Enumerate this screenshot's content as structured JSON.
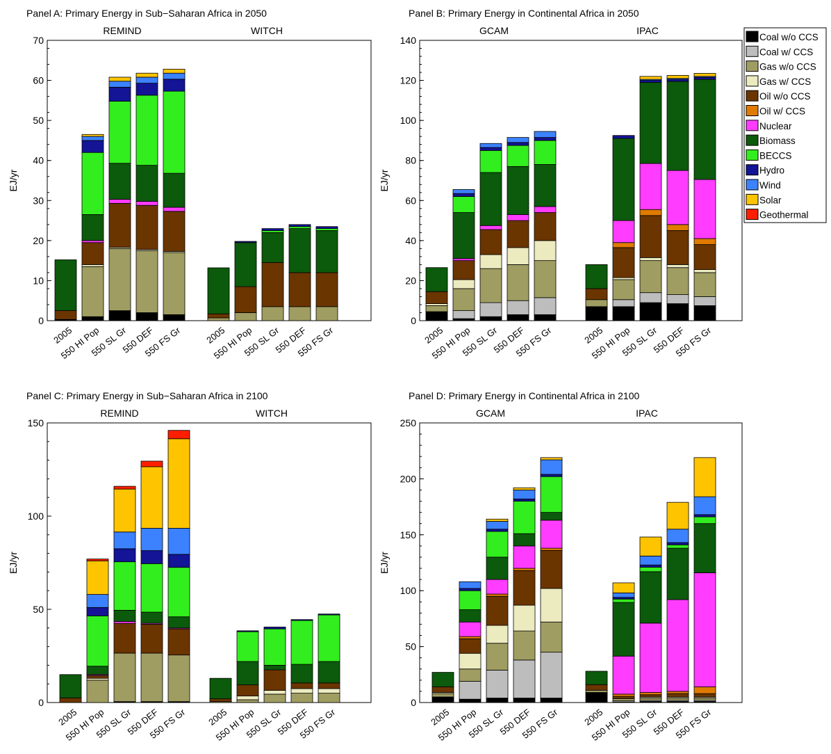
{
  "legend": {
    "items": [
      {
        "label": "Coal w/o CCS",
        "color": "#000000"
      },
      {
        "label": "Coal w/ CCS",
        "color": "#bdbdbd"
      },
      {
        "label": "Gas w/o CCS",
        "color": "#a09d62"
      },
      {
        "label": "Gas w/ CCS",
        "color": "#ecebc0"
      },
      {
        "label": "Oil w/o CCS",
        "color": "#6b3500"
      },
      {
        "label": "Oil w/ CCS",
        "color": "#e07b00"
      },
      {
        "label": "Nuclear",
        "color": "#ff3cff"
      },
      {
        "label": "Biomass",
        "color": "#0c5a0c"
      },
      {
        "label": "BECCS",
        "color": "#33ee1e"
      },
      {
        "label": "Hydro",
        "color": "#141496"
      },
      {
        "label": "Wind",
        "color": "#3c82ff"
      },
      {
        "label": "Solar",
        "color": "#ffc400"
      },
      {
        "label": "Geothermal",
        "color": "#ff1e00"
      }
    ]
  },
  "chart_data": [
    {
      "type": "bar",
      "stacked": true,
      "title": "Panel A: Primary Energy in Sub−Saharan Africa in 2050",
      "ylabel": "EJ/yr",
      "ylim": [
        0,
        70
      ],
      "yticks": [
        0,
        10,
        20,
        30,
        40,
        50,
        60,
        70
      ],
      "groups": [
        {
          "name": "REMIND",
          "categories": [
            "2005",
            "550 HI Pop",
            "550 SL Gr",
            "550 DEF",
            "550 FS Gr"
          ],
          "stacks": [
            [
              0.3,
              0,
              0,
              0,
              2.2,
              0,
              0,
              12.7,
              0,
              0,
              0,
              0,
              0
            ],
            [
              1,
              0,
              12.5,
              0.5,
              5.5,
              0,
              0.5,
              6.5,
              15.5,
              3,
              1,
              0.5,
              0
            ],
            [
              2.5,
              0,
              15.5,
              0.3,
              11,
              0,
              1,
              9,
              15.5,
              3.5,
              1.5,
              1,
              0
            ],
            [
              2,
              0,
              15.5,
              0.3,
              11,
              0,
              1,
              9,
              17.5,
              3,
              1.5,
              1,
              0
            ],
            [
              1.5,
              0,
              15.5,
              0.3,
              10,
              0,
              1,
              8.5,
              20.5,
              3,
              1.5,
              1,
              0
            ]
          ]
        },
        {
          "name": "WITCH",
          "categories": [
            "2005",
            "550 HI Pop",
            "550 SL Gr",
            "550 DEF",
            "550 FS Gr"
          ],
          "stacks": [
            [
              0,
              0,
              0.7,
              0,
              1,
              0,
              0,
              11.5,
              0,
              0,
              0,
              0,
              0
            ],
            [
              0,
              0,
              2,
              0,
              6.5,
              0,
              0,
              11,
              0,
              0.3,
              0,
              0,
              0
            ],
            [
              0,
              0,
              3.5,
              0,
              11,
              0,
              0,
              7.5,
              0.5,
              0.5,
              0,
              0,
              0
            ],
            [
              0,
              0,
              3.5,
              0,
              8.5,
              0,
              0,
              11,
              0.5,
              0.5,
              0,
              0,
              0
            ],
            [
              0,
              0,
              3.5,
              0,
              8.5,
              0,
              0,
              10.5,
              0.5,
              0.5,
              0,
              0,
              0
            ]
          ]
        }
      ]
    },
    {
      "type": "bar",
      "stacked": true,
      "title": "Panel B: Primary Energy in Continental Africa in 2050",
      "ylabel": "EJ/yr",
      "ylim": [
        0,
        140
      ],
      "yticks": [
        0,
        20,
        40,
        60,
        80,
        100,
        120,
        140
      ],
      "groups": [
        {
          "name": "GCAM",
          "categories": [
            "2005",
            "550 HI Pop",
            "550 SL Gr",
            "550 DEF",
            "550 FS Gr"
          ],
          "stacks": [
            [
              4.5,
              0,
              3,
              1,
              6,
              0,
              0,
              12,
              0,
              0,
              0,
              0,
              0
            ],
            [
              1,
              4,
              11,
              4.5,
              9.5,
              0,
              1,
              23,
              8,
              1.5,
              2,
              0,
              0
            ],
            [
              2,
              7,
              17,
              7,
              12.5,
              0,
              2,
              26.5,
              11,
              1.5,
              2,
              0,
              0
            ],
            [
              3,
              7,
              18,
              8.5,
              13.5,
              0,
              3,
              24,
              10.5,
              1.5,
              2.5,
              0,
              0
            ],
            [
              3,
              8.5,
              18.5,
              10,
              14,
              0,
              3,
              21,
              12,
              1.5,
              3,
              0,
              0
            ]
          ]
        },
        {
          "name": "IPAC",
          "categories": [
            "2005",
            "550 HI Pop",
            "550 SL Gr",
            "550 DEF",
            "550 FS Gr"
          ],
          "stacks": [
            [
              7,
              0,
              3.5,
              0,
              5.5,
              0,
              0,
              12,
              0,
              0,
              0,
              0,
              0
            ],
            [
              7,
              3.5,
              10,
              1,
              15,
              2.5,
              11,
              41,
              0,
              1.5,
              0,
              0,
              0
            ],
            [
              9,
              5,
              16,
              1.5,
              21,
              3,
              23,
              40.5,
              0,
              1,
              0.5,
              1.5,
              0
            ],
            [
              8.5,
              4.5,
              13.5,
              1.5,
              17,
              3,
              27,
              44.5,
              0,
              1,
              0.5,
              1.5,
              0
            ],
            [
              7.5,
              4.5,
              12,
              1.5,
              12.5,
              3,
              29.5,
              50,
              0,
              1,
              0.5,
              1.5,
              0
            ]
          ]
        }
      ]
    },
    {
      "type": "bar",
      "stacked": true,
      "title": "Panel C: Primary Energy in Sub−Saharan Africa in 2100",
      "ylabel": "EJ/yr",
      "ylim": [
        0,
        150
      ],
      "yticks": [
        0,
        50,
        100,
        150
      ],
      "groups": [
        {
          "name": "REMIND",
          "categories": [
            "2005",
            "550 HI Pop",
            "550 SL Gr",
            "550 DEF",
            "550 FS Gr"
          ],
          "stacks": [
            [
              0,
              0,
              0,
              0,
              2.5,
              0,
              0,
              12.5,
              0,
              0,
              0,
              0,
              0
            ],
            [
              0,
              0,
              12,
              1,
              1.5,
              0,
              0.5,
              4.5,
              27,
              4.5,
              7,
              18,
              1
            ],
            [
              0.5,
              0,
              26,
              0,
              16,
              0,
              1,
              6,
              26,
              7,
              9,
              23,
              1.5
            ],
            [
              0.5,
              0,
              26,
              0,
              15.5,
              0,
              0.5,
              6,
              26,
              7,
              12,
              33,
              3
            ],
            [
              0.5,
              0,
              25,
              0,
              14,
              0,
              0.5,
              6,
              26.5,
              7,
              14,
              48,
              4.5
            ]
          ]
        },
        {
          "name": "WITCH",
          "categories": [
            "2005",
            "550 HI Pop",
            "550 SL Gr",
            "550 DEF",
            "550 FS Gr"
          ],
          "stacks": [
            [
              0,
              0,
              0.5,
              0,
              1.5,
              0,
              0,
              11,
              0,
              0,
              0,
              0,
              0
            ],
            [
              0,
              0,
              1.5,
              2,
              6,
              0,
              0,
              12.5,
              16,
              0.5,
              0,
              0,
              0
            ],
            [
              0,
              0,
              4.5,
              2,
              11,
              0,
              0,
              2.5,
              19.5,
              1,
              0,
              0,
              0
            ],
            [
              0,
              0,
              5,
              2.5,
              3,
              0,
              0,
              10,
              23.5,
              0.5,
              0,
              0,
              0
            ],
            [
              0,
              0,
              5,
              2.5,
              3,
              0,
              0,
              11.5,
              25,
              0.5,
              0,
              0,
              0
            ]
          ]
        }
      ]
    },
    {
      "type": "bar",
      "stacked": true,
      "title": "Panel D: Primary Energy in Continental Africa in 2100",
      "ylabel": "EJ/yr",
      "ylim": [
        0,
        250
      ],
      "yticks": [
        0,
        50,
        100,
        150,
        200,
        250
      ],
      "groups": [
        {
          "name": "GCAM",
          "categories": [
            "2005",
            "550 HI Pop",
            "550 SL Gr",
            "550 DEF",
            "550 FS Gr"
          ],
          "stacks": [
            [
              5,
              0,
              3,
              1,
              5,
              0,
              0,
              13,
              0,
              0,
              0,
              0,
              0
            ],
            [
              3,
              16,
              11,
              14,
              13,
              2,
              13,
              11,
              17,
              2,
              6,
              0,
              0
            ],
            [
              4,
              25,
              24,
              16,
              26,
              2,
              13,
              20,
              23,
              2,
              7,
              2,
              0
            ],
            [
              4,
              34,
              26,
              23,
              31,
              2,
              20,
              11,
              29,
              2,
              8,
              2,
              0
            ],
            [
              4,
              41,
              27,
              30,
              34,
              2,
              25,
              7,
              32,
              2,
              13,
              2,
              0
            ]
          ]
        },
        {
          "name": "IPAC",
          "categories": [
            "2005",
            "550 HI Pop",
            "550 SL Gr",
            "550 DEF",
            "550 FS Gr"
          ],
          "stacks": [
            [
              9,
              0,
              2,
              0,
              5,
              0,
              0,
              12,
              0,
              0,
              0,
              0,
              0
            ],
            [
              0.5,
              1,
              2,
              0,
              2,
              2,
              34,
              48,
              3,
              1.5,
              4,
              9,
              0
            ],
            [
              1,
              1,
              2,
              1,
              2,
              2,
              62,
              46,
              4,
              2,
              8,
              17,
              0
            ],
            [
              1,
              1,
              2,
              1,
              3,
              2,
              82,
              46,
              3,
              2,
              12,
              24,
              0
            ],
            [
              1,
              1,
              2,
              1,
              3,
              6,
              102,
              44,
              6,
              2,
              16,
              35,
              0
            ]
          ]
        }
      ]
    }
  ]
}
